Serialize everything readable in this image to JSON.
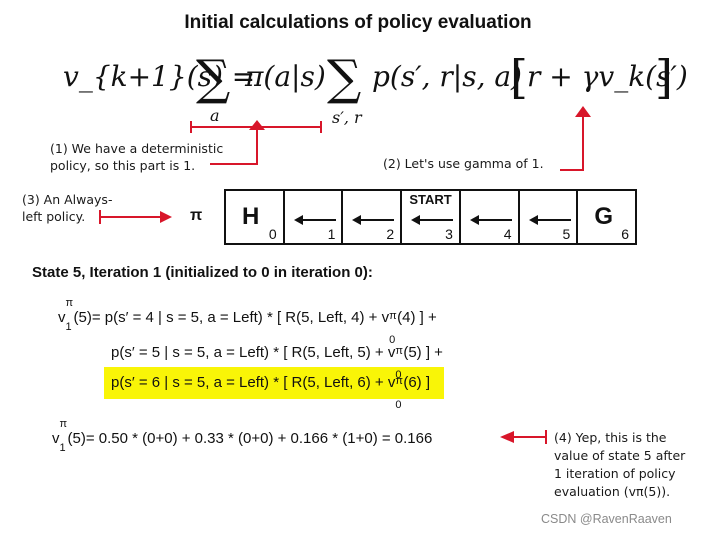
{
  "title": "Initial calculations of policy evaluation",
  "formula": {
    "lhs": "v_{k+1}(s) = ",
    "sum1_sub": "a",
    "pi_term": "π(a|s)",
    "sum2_sub": "s′, r",
    "p_term": "p(s′, r|s, a)",
    "bracket_body": "r + γv_k(s′)"
  },
  "notes": {
    "note1_line1": "(1) We have a deterministic",
    "note1_line2": "policy, so this part is 1.",
    "note2": "(2) Let's use gamma of 1.",
    "note3_line1": "(3) An Always-",
    "note3_line2": "left policy.",
    "note4_line1": "(4) Yep, this is the",
    "note4_line2": "value of state 5 after",
    "note4_line3": "1 iteration of policy",
    "note4_line4": "evaluation (vπ(5))."
  },
  "pi_label": "π",
  "grid": {
    "start_label": "START",
    "cells": [
      {
        "big": "H",
        "num": "0"
      },
      {
        "big": "",
        "num": "1"
      },
      {
        "big": "",
        "num": "2"
      },
      {
        "big": "",
        "num": "3"
      },
      {
        "big": "",
        "num": "4"
      },
      {
        "big": "",
        "num": "5"
      },
      {
        "big": "G",
        "num": "6"
      }
    ]
  },
  "section_heading": "State 5, Iteration 1 (initialized to 0 in iteration 0):",
  "equations": {
    "line1_v": "v",
    "line1_sup": "π",
    "line1_sub": "1",
    "line1_rest": "(5)= p(s′ = 4 | s = 5, a = Left) * [ R(5, Left, 4) + v",
    "line1_v0_sup": "π",
    "line1_v0_sub": "0",
    "line1_tail": "(4) ]  +",
    "line2": "p(s′ = 5 | s = 5, a = Left) * [ R(5, Left, 5) + v",
    "line2_sup": "π",
    "line2_sub": "0",
    "line2_tail": "(5) ]  +",
    "line3": "p(s′ = 6 | s = 5, a = Left) * [ R(5, Left, 6) + v",
    "line3_sup": "π",
    "line3_sub": "0",
    "line3_tail": "(6) ]",
    "result_v": "v",
    "result_sup": "π",
    "result_sub": "1",
    "result_rest": "(5)= 0.50 * (0+0)   +  0.33 * (0+0)   +  0.166 * (1+0)  =  0.166"
  },
  "watermark": "CSDN @RavenRaaven",
  "colors": {
    "highlight": "#f9f507",
    "annotation": "#d8162a"
  }
}
